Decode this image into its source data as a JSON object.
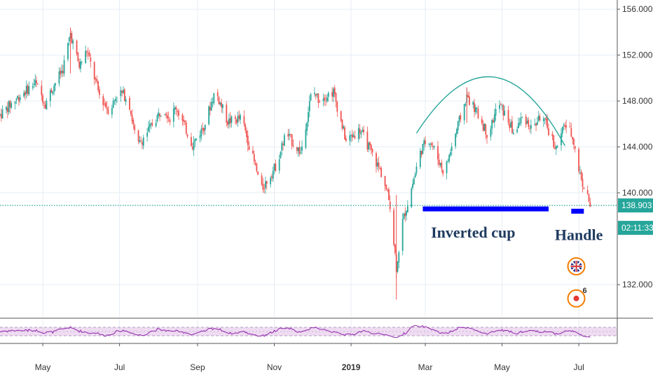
{
  "chart_data": {
    "type": "line",
    "subtype": "candlestick-ohlc",
    "colors": {
      "up": "#26a69a",
      "down": "#ef5350",
      "price_line": "#26a69a",
      "price_tag_bg": "#26a69a",
      "countdown_bg": "#26a69a",
      "annotation_arc": "#26a69a",
      "annotation_bar": "#0000ff",
      "rsi_line": "#8e24aa",
      "rsi_band": "#e1bee7",
      "grid": "#e6edf5"
    },
    "y_axis": {
      "scale": "linear",
      "range": [
        129.2,
        156.8
      ],
      "ticks": [
        "156.000",
        "152.000",
        "148.000",
        "144.000",
        "140.000",
        "132.000"
      ],
      "tick_values": [
        156,
        152,
        148,
        144,
        140,
        132
      ]
    },
    "x_axis": {
      "range": [
        "2018-03-28",
        "2019-07-31"
      ],
      "ticks": [
        {
          "label": "May",
          "date": "2018-05-01",
          "bold": false
        },
        {
          "label": "Jul",
          "date": "2018-07-01",
          "bold": false
        },
        {
          "label": "Sep",
          "date": "2018-09-01",
          "bold": false
        },
        {
          "label": "Nov",
          "date": "2018-11-01",
          "bold": false
        },
        {
          "label": "2019",
          "date": "2019-01-01",
          "bold": true
        },
        {
          "label": "Mar",
          "date": "2019-03-01",
          "bold": false
        },
        {
          "label": "May",
          "date": "2019-05-01",
          "bold": false
        },
        {
          "label": "Jul",
          "date": "2019-07-01",
          "bold": false
        }
      ]
    },
    "grid": true,
    "price_path": [
      [
        "2018-03-28",
        146.8
      ],
      [
        "2018-04-10",
        148.2
      ],
      [
        "2018-04-25",
        149.6
      ],
      [
        "2018-05-03",
        147.8
      ],
      [
        "2018-05-10",
        149.4
      ],
      [
        "2018-05-17",
        150.8
      ],
      [
        "2018-05-23",
        153.9
      ],
      [
        "2018-05-30",
        151.0
      ],
      [
        "2018-06-05",
        152.4
      ],
      [
        "2018-06-15",
        148.5
      ],
      [
        "2018-06-23",
        147.1
      ],
      [
        "2018-06-30",
        148.9
      ],
      [
        "2018-07-08",
        148.2
      ],
      [
        "2018-07-15",
        144.0
      ],
      [
        "2018-07-26",
        145.8
      ],
      [
        "2018-08-05",
        147.5
      ],
      [
        "2018-08-10",
        146.5
      ],
      [
        "2018-08-15",
        147.5
      ],
      [
        "2018-08-28",
        144.2
      ],
      [
        "2018-09-06",
        145.8
      ],
      [
        "2018-09-15",
        148.9
      ],
      [
        "2018-09-25",
        146.2
      ],
      [
        "2018-10-06",
        146.5
      ],
      [
        "2018-10-22",
        140.3
      ],
      [
        "2018-11-03",
        142.5
      ],
      [
        "2018-11-10",
        145.2
      ],
      [
        "2018-11-22",
        143.5
      ],
      [
        "2018-12-01",
        149.0
      ],
      [
        "2018-12-06",
        148.2
      ],
      [
        "2018-12-18",
        148.8
      ],
      [
        "2018-12-28",
        144.5
      ],
      [
        "2019-01-08",
        145.5
      ],
      [
        "2019-01-15",
        144.0
      ],
      [
        "2019-01-26",
        141.5
      ],
      [
        "2019-02-01",
        139.0
      ],
      [
        "2019-02-06",
        133.5
      ],
      [
        "2019-02-11",
        137.5
      ],
      [
        "2019-02-16",
        139.5
      ],
      [
        "2019-02-25",
        143.5
      ],
      [
        "2019-03-03",
        144.9
      ],
      [
        "2019-03-08",
        143.8
      ],
      [
        "2019-03-16",
        141.7
      ],
      [
        "2019-03-24",
        144.8
      ],
      [
        "2019-04-03",
        148.4
      ],
      [
        "2019-04-10",
        147.2
      ],
      [
        "2019-04-20",
        145.0
      ],
      [
        "2019-04-28",
        147.8
      ],
      [
        "2019-05-05",
        146.5
      ],
      [
        "2019-05-10",
        145.2
      ],
      [
        "2019-05-18",
        146.7
      ],
      [
        "2019-05-25",
        145.5
      ],
      [
        "2019-06-01",
        146.8
      ],
      [
        "2019-06-08",
        145.2
      ],
      [
        "2019-06-13",
        143.8
      ],
      [
        "2019-06-20",
        146.0
      ],
      [
        "2019-06-26",
        145.0
      ],
      [
        "2019-07-01",
        142.0
      ],
      [
        "2019-07-05",
        140.5
      ],
      [
        "2019-07-10",
        139.0
      ]
    ],
    "price_spikes": [
      {
        "date": "2019-02-06",
        "low": 130.7,
        "high": 139.8
      },
      {
        "date": "2018-05-23",
        "low": 150.4,
        "high": 154.4
      },
      {
        "date": "2019-04-03",
        "low": 146.1,
        "high": 149.2
      }
    ],
    "last_price": "138.903",
    "last_price_value": 138.903,
    "countdown": "02:11:33",
    "annotations": [
      {
        "kind": "arc",
        "from": [
          "2019-02-22",
          145.2
        ],
        "peak": [
          "2019-04-23",
          150.1
        ],
        "to": [
          "2019-06-20",
          144.1
        ]
      },
      {
        "kind": "bar",
        "from": "2019-02-27",
        "to": "2019-06-07",
        "price": 138.6
      },
      {
        "kind": "bar",
        "from": "2019-06-25",
        "to": "2019-07-05",
        "price": 138.4
      },
      {
        "kind": "label",
        "text": "Inverted cup",
        "date": "2019-04-08",
        "price": 136.1
      },
      {
        "kind": "label",
        "text": "Handle",
        "date": "2019-07-01",
        "price": 135.9
      }
    ],
    "event_markers": [
      {
        "icon": "uk-flag-icon",
        "date": "2019-06-29",
        "price": 133.6
      },
      {
        "icon": "alert-event-icon",
        "date": "2019-06-29",
        "price": 130.8,
        "badge": "6"
      }
    ],
    "rsi": {
      "range": [
        20,
        80
      ],
      "band_top": 70,
      "band_bottom": 30,
      "midline": 50,
      "visible_range": [
        0,
        100
      ]
    }
  }
}
